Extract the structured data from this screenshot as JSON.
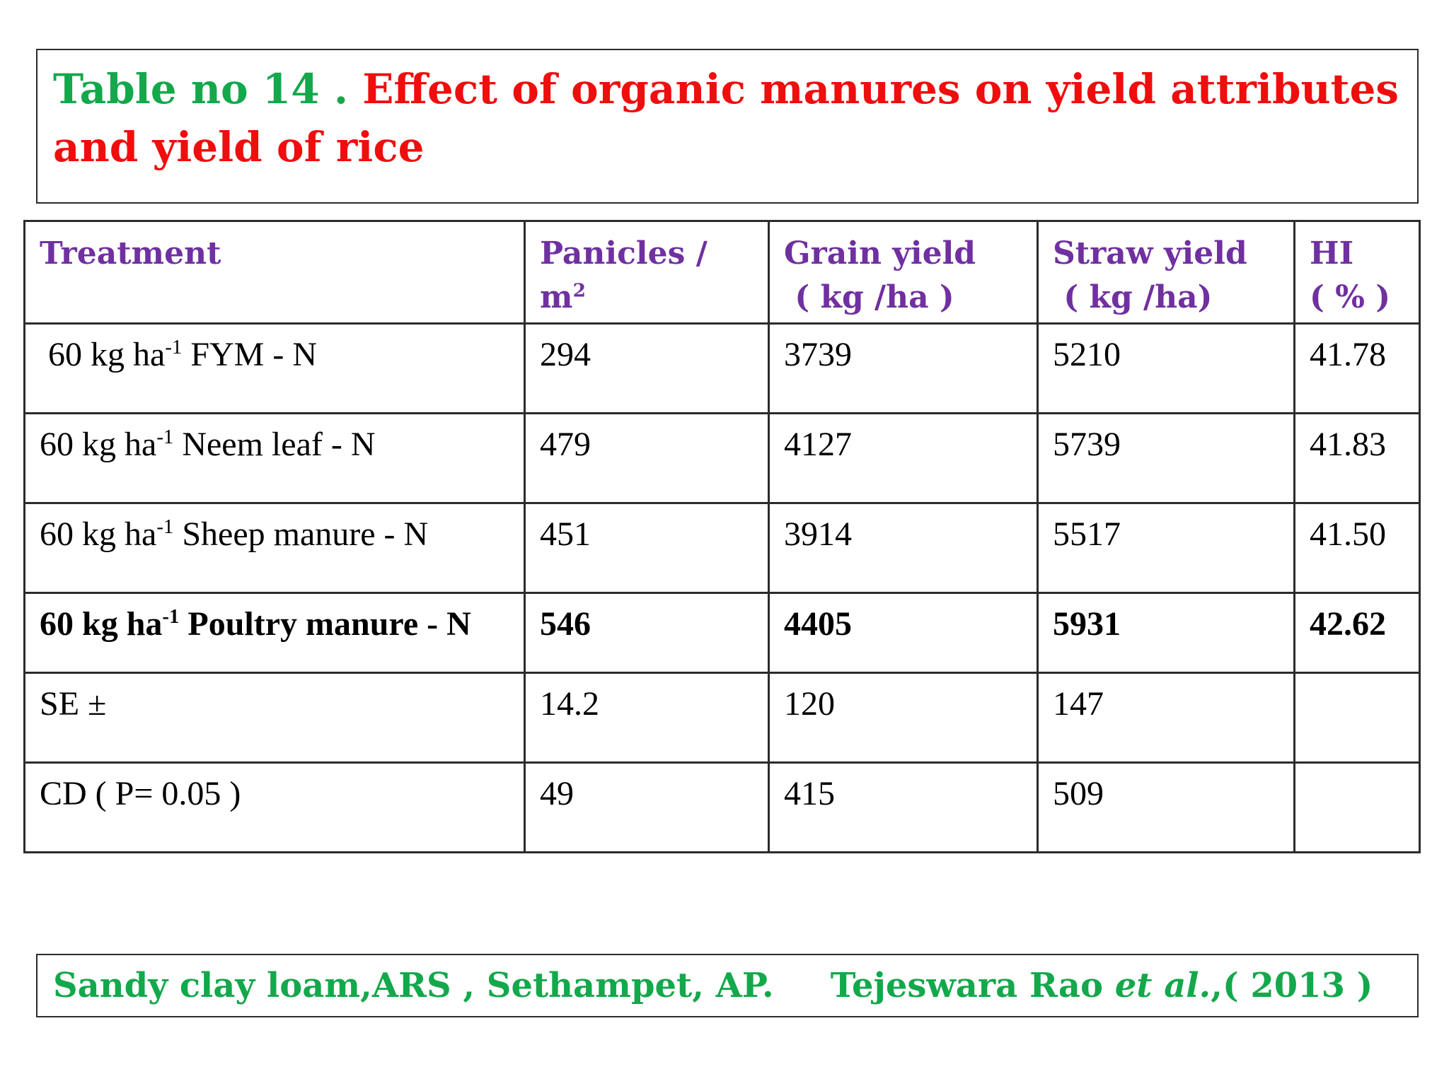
{
  "title": {
    "prefix": "Table no 14 . ",
    "text": "Effect of organic manures on  yield attributes and yield of rice"
  },
  "table": {
    "headers": [
      {
        "line1": "Treatment",
        "line2": "",
        "sup": ""
      },
      {
        "line1": "Panicles /",
        "line2": "m",
        "sup": "2"
      },
      {
        "line1": "Grain yield",
        "line2": " ( kg /ha )",
        "sup": ""
      },
      {
        "line1": "Straw yield",
        "line2": " ( kg /ha)",
        "sup": ""
      },
      {
        "line1": "HI",
        "line2": "( % )",
        "sup": ""
      }
    ],
    "rows": [
      {
        "label_pre": " 60 kg ha",
        "label_sup": "-1",
        "label_post": " FYM - N",
        "panicles": "294",
        "grain": "3739",
        "straw": "5210",
        "hi": "41.78"
      },
      {
        "label_pre": "60 kg ha",
        "label_sup": "-1",
        "label_post": " Neem leaf - N",
        "panicles": "479",
        "grain": "4127",
        "straw": "5739",
        "hi": "41.83"
      },
      {
        "label_pre": "60 kg ha",
        "label_sup": "-1",
        "label_post": " Sheep manure - N",
        "panicles": "451",
        "grain": "3914",
        "straw": "5517",
        "hi": "41.50"
      },
      {
        "label_pre": "60 kg ha",
        "label_sup": "-1",
        "label_post": " Poultry manure - N",
        "panicles": "546",
        "grain": "4405",
        "straw": "5931",
        "hi": "42.62"
      },
      {
        "label_pre": "SE ±",
        "label_sup": "",
        "label_post": "",
        "panicles": "14.2",
        "grain": "120",
        "straw": "147",
        "hi": ""
      },
      {
        "label_pre": "CD ( P= 0.05 )",
        "label_sup": "",
        "label_post": "",
        "panicles": "49",
        "grain": "415",
        "straw": "509",
        "hi": ""
      }
    ]
  },
  "footer": {
    "location": "Sandy clay loam,ARS , Sethampet, AP.",
    "author": "Tejeswara Rao ",
    "etal": "et al.",
    "year": ",( 2013 )"
  },
  "colors": {
    "green": "#13a84b",
    "red": "#f00d0d",
    "purple": "#7030a0"
  }
}
